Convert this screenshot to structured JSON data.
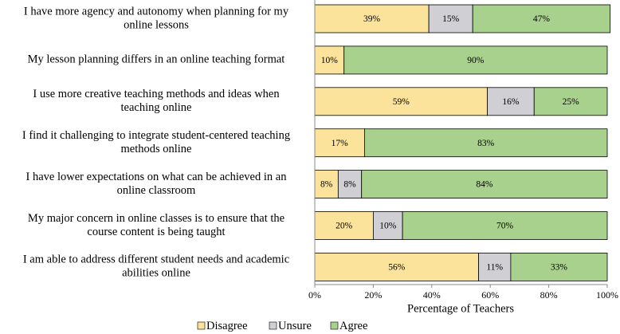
{
  "chart_data": {
    "type": "stacked-barh",
    "categories": [
      [
        "I have more agency and autonomy when planning for my",
        "online lessons"
      ],
      [
        "My lesson planning differs in an online teaching format"
      ],
      [
        "I use more creative teaching methods and ideas when",
        "teaching online"
      ],
      [
        "I find it challenging to integrate student-centered teaching",
        "methods online"
      ],
      [
        "I have lower expectations on what can be achieved in an",
        "online classroom"
      ],
      [
        "My major concern in online classes is to ensure that the",
        "course content is being taught"
      ],
      [
        "I am able to address different student needs and academic",
        "abilities online"
      ]
    ],
    "series": [
      {
        "name": "Disagree",
        "color": "#fbe39b",
        "values": [
          39,
          10,
          59,
          17,
          8,
          20,
          56
        ],
        "value_labels": [
          "39%",
          "10%",
          "59%",
          "17%",
          "8%",
          "20%",
          "56%"
        ]
      },
      {
        "name": "Unsure",
        "color": "#d0cfd3",
        "values": [
          15,
          null,
          16,
          null,
          8,
          10,
          11
        ],
        "value_labels": [
          "15%",
          null,
          "16%",
          null,
          "8%",
          "10%",
          "11%"
        ]
      },
      {
        "name": "Agree",
        "color": "#a9d18e",
        "values": [
          47,
          90,
          25,
          83,
          84,
          70,
          33
        ],
        "value_labels": [
          "47%",
          "90%",
          "25%",
          "83%",
          "84%",
          "70%",
          "33%"
        ]
      }
    ],
    "xlabel": "Percentage of Teachers",
    "xlim": [
      0,
      100
    ],
    "xticks": [
      {
        "value": 0,
        "label": "0%"
      },
      {
        "value": 20,
        "label": "20%"
      },
      {
        "value": 40,
        "label": "40%"
      },
      {
        "value": 60,
        "label": "60%"
      },
      {
        "value": 80,
        "label": "80%"
      },
      {
        "value": 100,
        "label": "100%"
      }
    ],
    "legend": "bottom"
  }
}
